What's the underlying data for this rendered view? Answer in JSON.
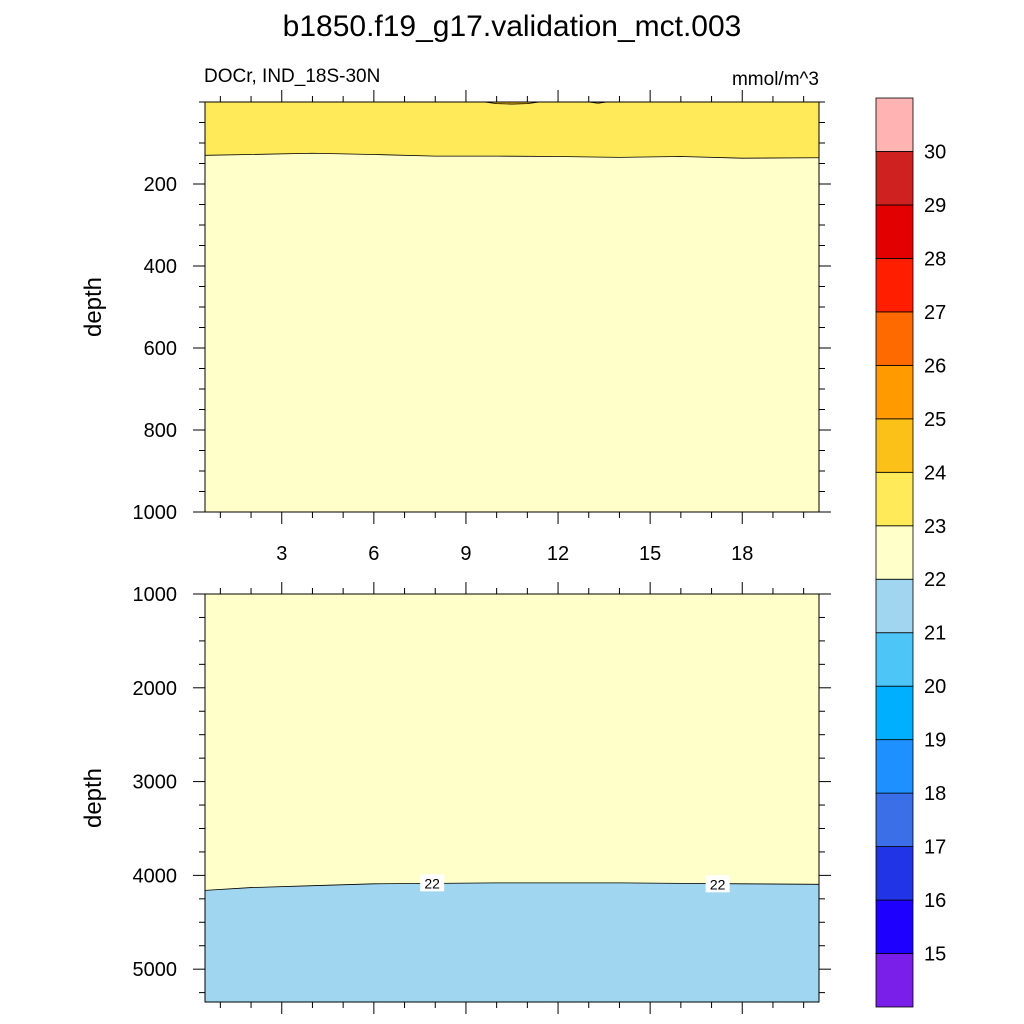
{
  "figure": {
    "title": "b1850.f19_g17.validation_mct.003",
    "left_subtitle": "DOCr, IND_18S-30N",
    "right_subtitle": "mmol/m^3"
  },
  "chart_data": [
    {
      "type": "contour",
      "panel": "upper",
      "ylabel": "depth",
      "xlim": [
        0.5,
        20.5
      ],
      "ylim": [
        1000,
        0
      ],
      "x_ticks": [
        3,
        6,
        9,
        12,
        15,
        18
      ],
      "y_ticks": [
        200,
        400,
        600,
        800,
        1000
      ],
      "regions": [
        {
          "level": "23-24",
          "color": "#FFEB5A",
          "upper_boundary_depth": 0,
          "lower_boundary": {
            "x": [
              0.5,
              2,
              4,
              6,
              8,
              10,
              12,
              14,
              16,
              18,
              20.5
            ],
            "depth": [
              130,
              128,
              125,
              128,
              132,
              132,
              133,
              135,
              133,
              137,
              136
            ]
          }
        },
        {
          "level": "24-25",
          "color": "#FBC118",
          "patches": [
            {
              "x": [
                9.6,
                10.0,
                10.5,
                11.0,
                11.4
              ],
              "depth": [
                0,
                4,
                5,
                4,
                0
              ]
            },
            {
              "x": [
                13.0,
                13.3,
                13.6
              ],
              "depth": [
                0,
                3,
                0
              ]
            }
          ]
        },
        {
          "level": "22-23",
          "color": "#FFFFC9",
          "fill": "remainder"
        }
      ]
    },
    {
      "type": "contour",
      "panel": "lower",
      "ylabel": "depth",
      "xlim": [
        0.5,
        20.5
      ],
      "ylim": [
        5350,
        1000
      ],
      "x_ticks": [
        3,
        6,
        9,
        12,
        15,
        18
      ],
      "y_ticks": [
        1000,
        2000,
        3000,
        4000,
        5000
      ],
      "regions": [
        {
          "level": "22-23",
          "color": "#FFFFC9",
          "fill": "remainder"
        },
        {
          "level": "21-22",
          "color": "#A0D6F0",
          "lower_boundary_depth": 5350,
          "upper_boundary": {
            "x": [
              0.5,
              2,
              4,
              6,
              8,
              10,
              12,
              14,
              16,
              18,
              20.5
            ],
            "depth": [
              4160,
              4130,
              4110,
              4090,
              4085,
              4080,
              4080,
              4080,
              4085,
              4090,
              4095
            ]
          }
        }
      ],
      "contour_labels": [
        {
          "text": "22",
          "x": 7.9,
          "depth": 4085
        },
        {
          "text": "22",
          "x": 17.2,
          "depth": 4095
        }
      ]
    }
  ],
  "colorbar": {
    "colors": [
      "#7A1FEA",
      "#1E00FF",
      "#2134E6",
      "#3A6FE8",
      "#1E90FF",
      "#00B0FF",
      "#4DC6F7",
      "#A0D6F0",
      "#FFFFC9",
      "#FFEB5A",
      "#FBC118",
      "#FF9A00",
      "#FF6A00",
      "#FF1E00",
      "#E30000",
      "#D02121",
      "#FFB3B3"
    ],
    "labels": [
      "15",
      "16",
      "17",
      "18",
      "19",
      "20",
      "21",
      "22",
      "23",
      "24",
      "25",
      "26",
      "27",
      "28",
      "29",
      "30"
    ]
  }
}
